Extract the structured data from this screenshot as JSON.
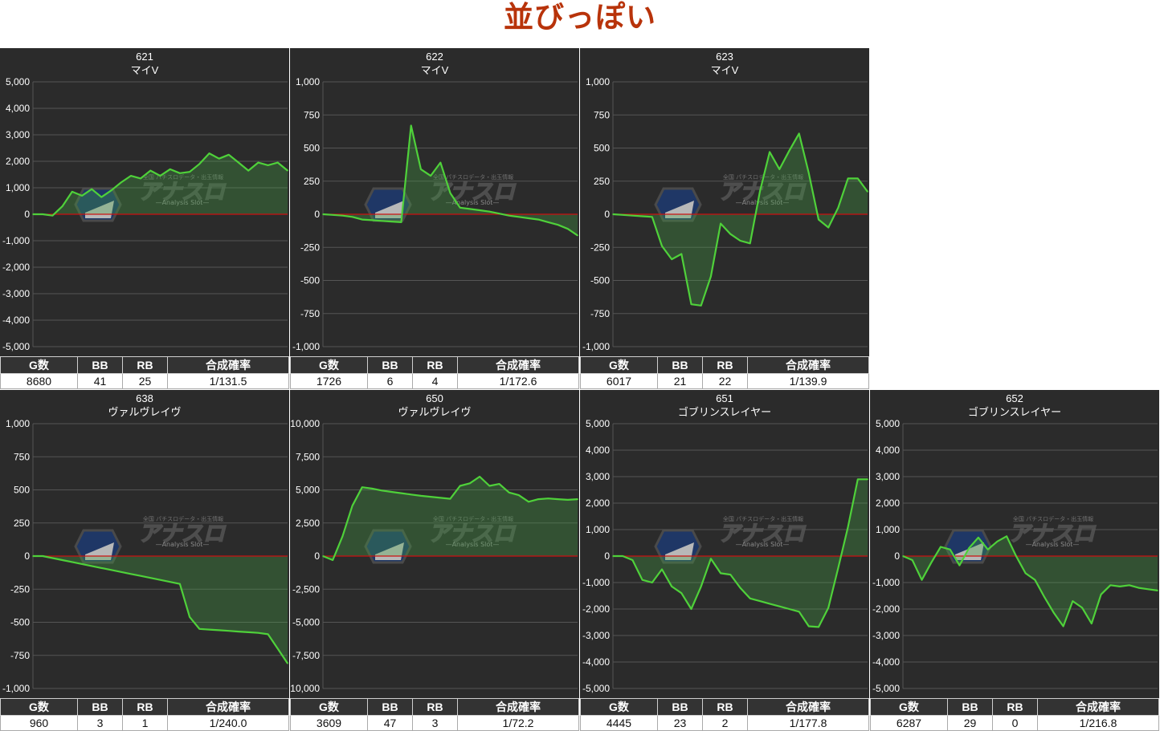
{
  "page": {
    "title": "並びっぽい"
  },
  "stats_headers": [
    "G数",
    "BB",
    "RB",
    "合成確率"
  ],
  "colors": {
    "background": "#2b2b2b",
    "line": "#4fd13a",
    "fill": "rgba(70,170,70,0.30)",
    "zero_line": "#cc1111",
    "grid": "#555555",
    "title": "#b8330a"
  },
  "watermark": {
    "logo_text": "アナスロ",
    "tagline": "全国 パチスロデータ・出玉情報",
    "subtitle": "Analysis Slot"
  },
  "panels": [
    {
      "id": "621",
      "machine": "マイV",
      "stats": {
        "games": "8680",
        "bb": "41",
        "rb": "25",
        "rate": "1/131.5"
      },
      "chart_data": {
        "type": "area",
        "xlabel": "",
        "ylabel": "",
        "ylim": [
          -5000,
          5000
        ],
        "yticks": [
          "5,000",
          "4,000",
          "3,000",
          "2,000",
          "1,000",
          "0",
          "-1,000",
          "-2,000",
          "-3,000",
          "-4,000",
          "-5,000"
        ],
        "x": [
          0,
          1,
          2,
          3,
          4,
          5,
          6,
          7,
          8,
          9,
          10,
          11,
          12,
          13,
          14,
          15,
          16,
          17,
          18,
          19,
          20,
          21,
          22,
          23,
          24,
          25,
          26
        ],
        "values": [
          0,
          0,
          -50,
          300,
          850,
          700,
          950,
          650,
          900,
          1200,
          1450,
          1350,
          1650,
          1450,
          1700,
          1550,
          1600,
          1900,
          2300,
          2100,
          2250,
          1950,
          1650,
          1950,
          1850,
          1950,
          1650
        ]
      }
    },
    {
      "id": "622",
      "machine": "マイV",
      "stats": {
        "games": "1726",
        "bb": "6",
        "rb": "4",
        "rate": "1/172.6"
      },
      "chart_data": {
        "type": "area",
        "xlabel": "",
        "ylabel": "",
        "ylim": [
          -1000,
          1000
        ],
        "yticks": [
          "1,000",
          "750",
          "500",
          "250",
          "0",
          "-250",
          "-500",
          "-750",
          "-1,000"
        ],
        "x": [
          0,
          1,
          2,
          3,
          4,
          5,
          6,
          7,
          8,
          9,
          10,
          11,
          12,
          13,
          14,
          15,
          16,
          17,
          18,
          19,
          20,
          21,
          22,
          23,
          24,
          25,
          26
        ],
        "values": [
          0,
          -5,
          -10,
          -20,
          -40,
          -45,
          -50,
          -55,
          -60,
          670,
          340,
          290,
          390,
          160,
          50,
          40,
          30,
          20,
          5,
          -10,
          -20,
          -30,
          -40,
          -60,
          -80,
          -110,
          -160
        ]
      }
    },
    {
      "id": "623",
      "machine": "マイV",
      "stats": {
        "games": "6017",
        "bb": "21",
        "rb": "22",
        "rate": "1/139.9"
      },
      "chart_data": {
        "type": "area",
        "xlabel": "",
        "ylabel": "",
        "ylim": [
          -1000,
          1000
        ],
        "yticks": [
          "1,000",
          "750",
          "500",
          "250",
          "0",
          "-250",
          "-500",
          "-750",
          "-1,000"
        ],
        "x": [
          0,
          1,
          2,
          3,
          4,
          5,
          6,
          7,
          8,
          9,
          10,
          11,
          12,
          13,
          14,
          15,
          16,
          17,
          18,
          19,
          20,
          21,
          22,
          23,
          24,
          25,
          26
        ],
        "values": [
          0,
          -5,
          -10,
          -15,
          -20,
          -240,
          -340,
          -300,
          -680,
          -690,
          -470,
          -70,
          -150,
          -200,
          -220,
          170,
          470,
          340,
          480,
          610,
          310,
          -40,
          -100,
          50,
          270,
          270,
          170
        ]
      }
    },
    {
      "id": "638",
      "machine": "ヴァルヴレイヴ",
      "stats": {
        "games": "960",
        "bb": "3",
        "rb": "1",
        "rate": "1/240.0"
      },
      "chart_data": {
        "type": "area",
        "xlabel": "",
        "ylabel": "",
        "ylim": [
          -1000,
          1000
        ],
        "yticks": [
          "1,000",
          "750",
          "500",
          "250",
          "0",
          "-250",
          "-500",
          "-750",
          "-1,000"
        ],
        "x": [
          0,
          1,
          2,
          3,
          4,
          5,
          6,
          7,
          8,
          9,
          10,
          11,
          12,
          13,
          14,
          15,
          16,
          17,
          18,
          19,
          20,
          21,
          22,
          23,
          24,
          25,
          26
        ],
        "values": [
          0,
          0,
          -15,
          -30,
          -45,
          -60,
          -75,
          -90,
          -105,
          -120,
          -135,
          -150,
          -165,
          -180,
          -195,
          -210,
          -460,
          -550,
          -555,
          -560,
          -565,
          -570,
          -575,
          -580,
          -590,
          -700,
          -810
        ]
      }
    },
    {
      "id": "650",
      "machine": "ヴァルヴレイヴ",
      "stats": {
        "games": "3609",
        "bb": "47",
        "rb": "3",
        "rate": "1/72.2"
      },
      "chart_data": {
        "type": "area",
        "xlabel": "",
        "ylabel": "",
        "ylim": [
          -10000,
          10000
        ],
        "yticks": [
          "10,000",
          "7,500",
          "5,000",
          "2,500",
          "0",
          "-2,500",
          "-5,000",
          "-7,500",
          "-10,000"
        ],
        "x": [
          0,
          1,
          2,
          3,
          4,
          5,
          6,
          7,
          8,
          9,
          10,
          11,
          12,
          13,
          14,
          15,
          16,
          17,
          18,
          19,
          20,
          21,
          22,
          23,
          24,
          25,
          26
        ],
        "values": [
          0,
          -300,
          1500,
          3800,
          5200,
          5100,
          4950,
          4850,
          4750,
          4650,
          4550,
          4480,
          4400,
          4330,
          5300,
          5500,
          6000,
          5300,
          5450,
          4800,
          4600,
          4100,
          4300,
          4350,
          4300,
          4250,
          4300
        ]
      }
    },
    {
      "id": "651",
      "machine": "ゴブリンスレイヤー",
      "stats": {
        "games": "4445",
        "bb": "23",
        "rb": "2",
        "rate": "1/177.8"
      },
      "chart_data": {
        "type": "area",
        "xlabel": "",
        "ylabel": "",
        "ylim": [
          -5000,
          5000
        ],
        "yticks": [
          "5,000",
          "4,000",
          "3,000",
          "2,000",
          "1,000",
          "0",
          "-1,000",
          "-2,000",
          "-3,000",
          "-4,000",
          "-5,000"
        ],
        "x": [
          0,
          1,
          2,
          3,
          4,
          5,
          6,
          7,
          8,
          9,
          10,
          11,
          12,
          13,
          14,
          15,
          16,
          17,
          18,
          19,
          20,
          21,
          22,
          23,
          24,
          25,
          26
        ],
        "values": [
          0,
          0,
          -150,
          -900,
          -1000,
          -500,
          -1150,
          -1400,
          -2000,
          -1150,
          -100,
          -650,
          -700,
          -1200,
          -1600,
          -1700,
          -1800,
          -1900,
          -2000,
          -2100,
          -2650,
          -2680,
          -1950,
          -450,
          1100,
          2900,
          2900
        ]
      }
    },
    {
      "id": "652",
      "machine": "ゴブリンスレイヤー",
      "stats": {
        "games": "6287",
        "bb": "29",
        "rb": "0",
        "rate": "1/216.8"
      },
      "chart_data": {
        "type": "area",
        "xlabel": "",
        "ylabel": "",
        "ylim": [
          -5000,
          5000
        ],
        "yticks": [
          "5,000",
          "4,000",
          "3,000",
          "2,000",
          "1,000",
          "0",
          "-1,000",
          "-2,000",
          "-3,000",
          "-4,000",
          "-5,000"
        ],
        "x": [
          0,
          1,
          2,
          3,
          4,
          5,
          6,
          7,
          8,
          9,
          10,
          11,
          12,
          13,
          14,
          15,
          16,
          17,
          18,
          19,
          20,
          21,
          22,
          23,
          24,
          25,
          26,
          27
        ],
        "values": [
          0,
          -150,
          -900,
          -250,
          350,
          250,
          -350,
          300,
          700,
          250,
          550,
          750,
          0,
          -650,
          -900,
          -1550,
          -2150,
          -2650,
          -1700,
          -1950,
          -2550,
          -1450,
          -1100,
          -1150,
          -1100,
          -1200,
          -1250,
          -1300
        ]
      }
    }
  ]
}
